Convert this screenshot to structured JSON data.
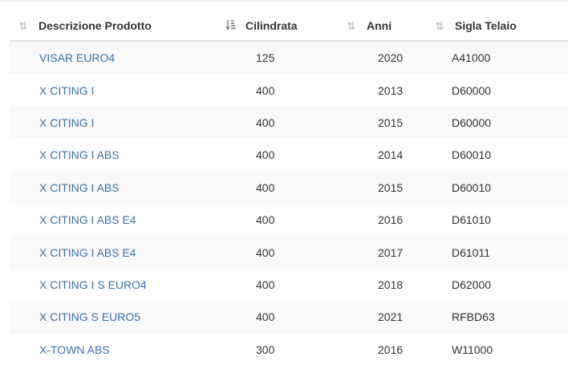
{
  "table": {
    "columns": [
      {
        "label": "Descrizione Prodotto",
        "sort_icon": "sort-both-icon"
      },
      {
        "label": "Cilindrata",
        "sort_icon": "sort-numeric-asc-icon"
      },
      {
        "label": "Anni",
        "sort_icon": "sort-both-icon"
      },
      {
        "label": "Sigla Telaio",
        "sort_icon": "sort-both-icon"
      }
    ],
    "rows": [
      {
        "descrizione": "VISAR EURO4",
        "cilindrata": "125",
        "anni": "2020",
        "sigla": "A41000"
      },
      {
        "descrizione": "X CITING I",
        "cilindrata": "400",
        "anni": "2013",
        "sigla": "D60000"
      },
      {
        "descrizione": "X CITING I",
        "cilindrata": "400",
        "anni": "2015",
        "sigla": "D60000"
      },
      {
        "descrizione": "X CITING I ABS",
        "cilindrata": "400",
        "anni": "2014",
        "sigla": "D60010"
      },
      {
        "descrizione": "X CITING I ABS",
        "cilindrata": "400",
        "anni": "2015",
        "sigla": "D60010"
      },
      {
        "descrizione": "X CITING I ABS E4",
        "cilindrata": "400",
        "anni": "2016",
        "sigla": "D61010"
      },
      {
        "descrizione": "X CITING I ABS E4",
        "cilindrata": "400",
        "anni": "2017",
        "sigla": "D61011"
      },
      {
        "descrizione": "X CITING I S EURO4",
        "cilindrata": "400",
        "anni": "2018",
        "sigla": "D62000"
      },
      {
        "descrizione": "X CITING S EURO5",
        "cilindrata": "400",
        "anni": "2021",
        "sigla": "RFBD63"
      },
      {
        "descrizione": "X-TOWN ABS",
        "cilindrata": "300",
        "anni": "2016",
        "sigla": "W11000"
      }
    ]
  },
  "colors": {
    "link": "#3b6fa8",
    "text": "#333333",
    "stripe": "#f9f9f9",
    "header_border": "#dddddd"
  }
}
